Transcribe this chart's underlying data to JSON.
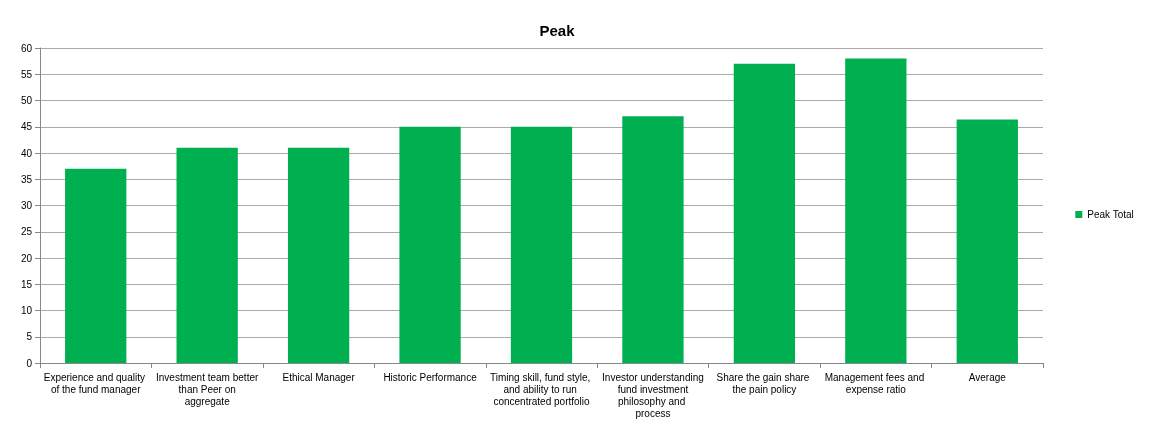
{
  "chart_data": {
    "type": "bar",
    "title": "Peak",
    "categories": [
      "Experience and quality of the fund manager",
      "Investment team better than Peer on aggregate",
      "Ethical Manager",
      "Historic Performance",
      "Timing skill, fund style, and ability to run concentrated portfolio",
      "Investor understanding fund investment philosophy and process",
      "Share the gain share the pain policy",
      "Management fees and expense ratio",
      "Average"
    ],
    "series": [
      {
        "name": "Peak Total",
        "color": "#00b050",
        "values": [
          37,
          41,
          41,
          45,
          45,
          47,
          57,
          58,
          46.4
        ]
      }
    ],
    "ylim": [
      0,
      60
    ],
    "yticks": [
      0,
      5,
      10,
      15,
      20,
      25,
      30,
      35,
      40,
      45,
      50,
      55,
      60
    ],
    "grid": "y",
    "legend": "right"
  }
}
